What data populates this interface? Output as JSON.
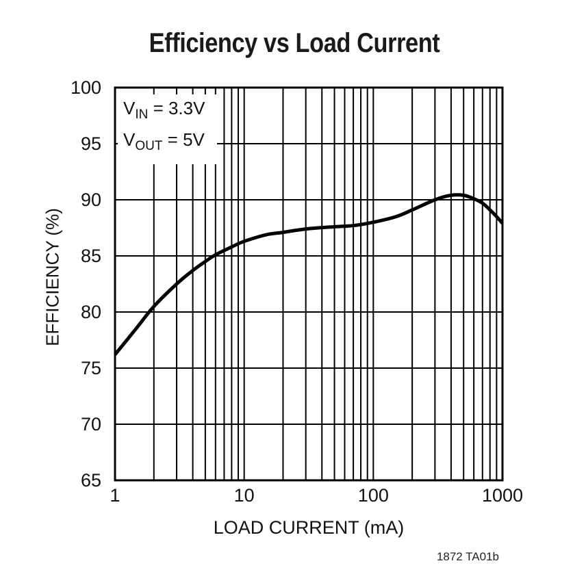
{
  "title": "Efficiency vs Load Current",
  "footer_id": "1872 TA01b",
  "annotation": {
    "line1": {
      "sym": "V",
      "sub": "IN",
      "rest": " = 3.3V"
    },
    "line2": {
      "sym": "V",
      "sub": "OUT",
      "rest": " = 5V"
    }
  },
  "axes": {
    "x_title": "LOAD CURRENT (mA)",
    "y_title": "EFFICIENCY (%)"
  },
  "colors": {
    "curve": "#000000",
    "grid": "#000000",
    "border": "#000000",
    "background": "#ffffff",
    "text": "#111111"
  },
  "chart_data": {
    "type": "line",
    "title": "Efficiency vs Load Current",
    "xlabel": "LOAD CURRENT (mA)",
    "ylabel": "EFFICIENCY (%)",
    "x_scale": "log",
    "xlim": [
      1,
      1000
    ],
    "ylim": [
      65,
      100
    ],
    "x_ticks": [
      1,
      10,
      100,
      1000
    ],
    "y_ticks": [
      100,
      95,
      90,
      85,
      80,
      75,
      70,
      65
    ],
    "grid": "full black grid, log minor verticals (2-9 per decade), horizontals every 5%",
    "legend": "none",
    "annotation": "VIN = 3.3V, VOUT = 5V",
    "series": [
      {
        "name": "Efficiency",
        "x": [
          1,
          1.5,
          2,
          3,
          4,
          5,
          6,
          8,
          10,
          15,
          20,
          30,
          50,
          70,
          100,
          150,
          200,
          300,
          400,
          500,
          600,
          700,
          800,
          900,
          1000
        ],
        "y": [
          76.2,
          78.7,
          80.5,
          82.5,
          83.7,
          84.5,
          85.1,
          85.8,
          86.3,
          86.9,
          87.1,
          87.4,
          87.6,
          87.7,
          88.0,
          88.5,
          89.1,
          90.0,
          90.4,
          90.4,
          90.1,
          89.7,
          89.1,
          88.5,
          87.9
        ]
      }
    ]
  }
}
